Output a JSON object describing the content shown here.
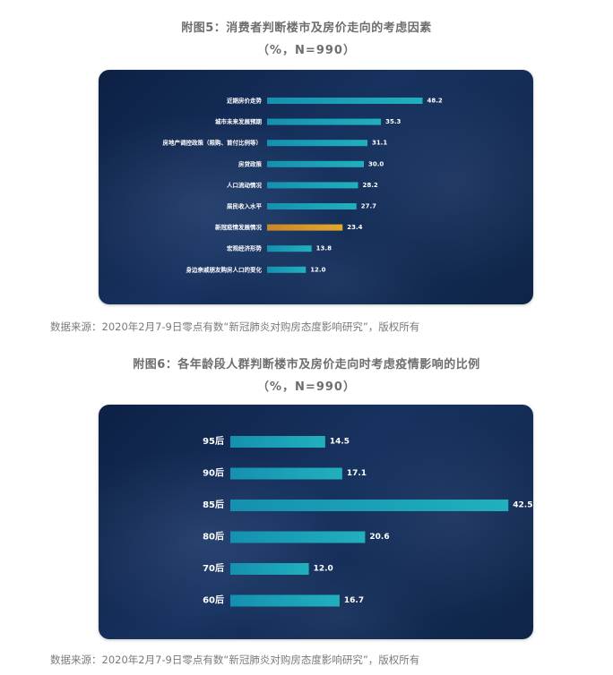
{
  "chart_data": [
    {
      "type": "bar",
      "orientation": "horizontal",
      "title": "附图5：消费者判断楼市及房价走向的考虑因素",
      "subtitle": "（%，N=990）",
      "categories": [
        "近期房价走势",
        "城市未来发展预期",
        "房地产调控政策（限购、首付比例等）",
        "房贷政策",
        "人口流动情况",
        "居民收入水平",
        "新冠疫情发展情况",
        "宏观经济形势",
        "身边亲戚朋友购房人口的变化"
      ],
      "values": [
        48.2,
        35.3,
        31.1,
        30.0,
        28.2,
        27.7,
        23.4,
        13.8,
        12.0
      ],
      "value_labels": [
        "48.2",
        "35.3",
        "31.1",
        "30.0",
        "28.2",
        "27.7",
        "23.4",
        "13.8",
        "12.0"
      ],
      "highlight_index": 6,
      "colors": {
        "bar": "#21b0bd",
        "highlight": "#e2a92b",
        "label": "#ffffff"
      },
      "source": "数据来源：2020年2月7-9日零点有数“新冠肺炎对购房态度影响研究”，版权所有"
    },
    {
      "type": "bar",
      "orientation": "horizontal",
      "title": "附图6：各年龄段人群判断楼市及房价走向时考虑疫情影响的比例",
      "subtitle": "（%，N=990）",
      "categories": [
        "95后",
        "90后",
        "85后",
        "80后",
        "70后",
        "60后"
      ],
      "values": [
        14.5,
        17.1,
        42.5,
        20.6,
        12.0,
        16.7
      ],
      "value_labels": [
        "14.5",
        "17.1",
        "42.5",
        "20.6",
        "12.0",
        "16.7"
      ],
      "colors": {
        "bar": "#21b0bd",
        "label": "#ffffff"
      },
      "source": "数据来源：2020年2月7-9日零点有数“新冠肺炎对购房态度影响研究”，版权所有"
    }
  ]
}
